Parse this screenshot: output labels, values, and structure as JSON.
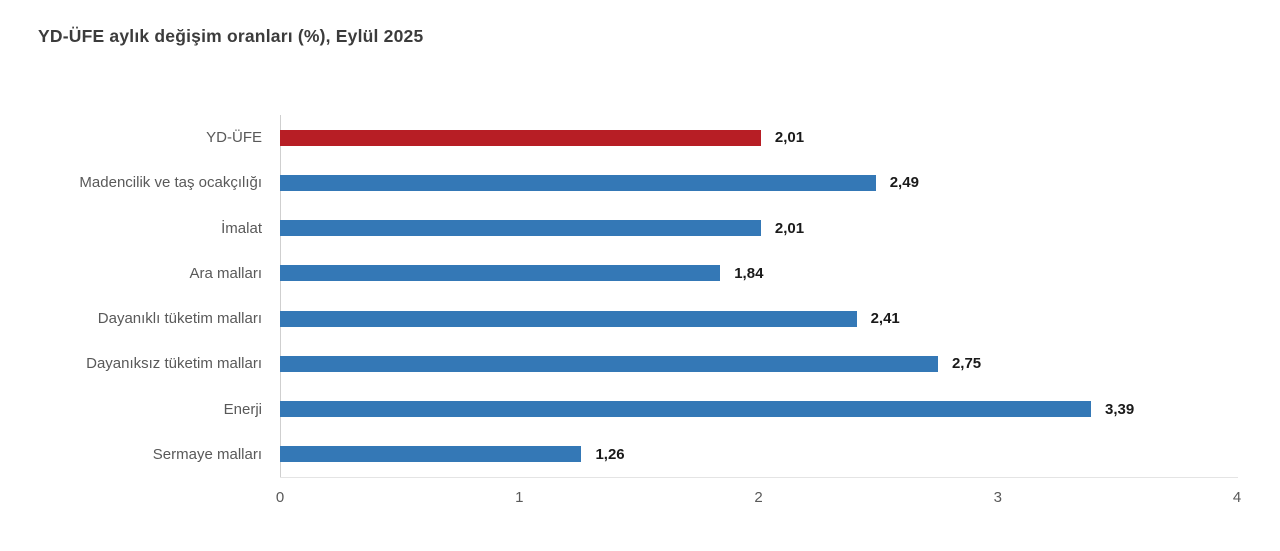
{
  "colors": {
    "default_bar": "#3478b6",
    "highlight_bar": "#b71e25",
    "title_text": "#3c3c3c",
    "category_text": "#595959",
    "value_text": "#1a1a1a",
    "axis_line": "#cfcfcf"
  },
  "chart_data": {
    "type": "bar",
    "orientation": "horizontal",
    "title": "YD-ÜFE aylık değişim oranları (%), Eylül 2025",
    "categories": [
      "YD-ÜFE",
      "Madencilik ve taş ocakçılığı",
      "İmalat",
      "Ara malları",
      "Dayanıklı tüketim malları",
      "Dayanıksız tüketim malları",
      "Enerji",
      "Sermaye malları"
    ],
    "values": [
      2.01,
      2.49,
      2.01,
      1.84,
      2.41,
      2.75,
      3.39,
      1.26
    ],
    "value_labels": [
      "2,01",
      "2,49",
      "2,01",
      "1,84",
      "2,41",
      "2,75",
      "3,39",
      "1,26"
    ],
    "highlighted_category": "YD-ÜFE",
    "xlabel": "",
    "ylabel": "",
    "xlim": [
      0,
      4
    ],
    "x_ticks": [
      "0",
      "1",
      "2",
      "3",
      "4"
    ],
    "grid": false,
    "legend": false,
    "data_labels": true
  }
}
